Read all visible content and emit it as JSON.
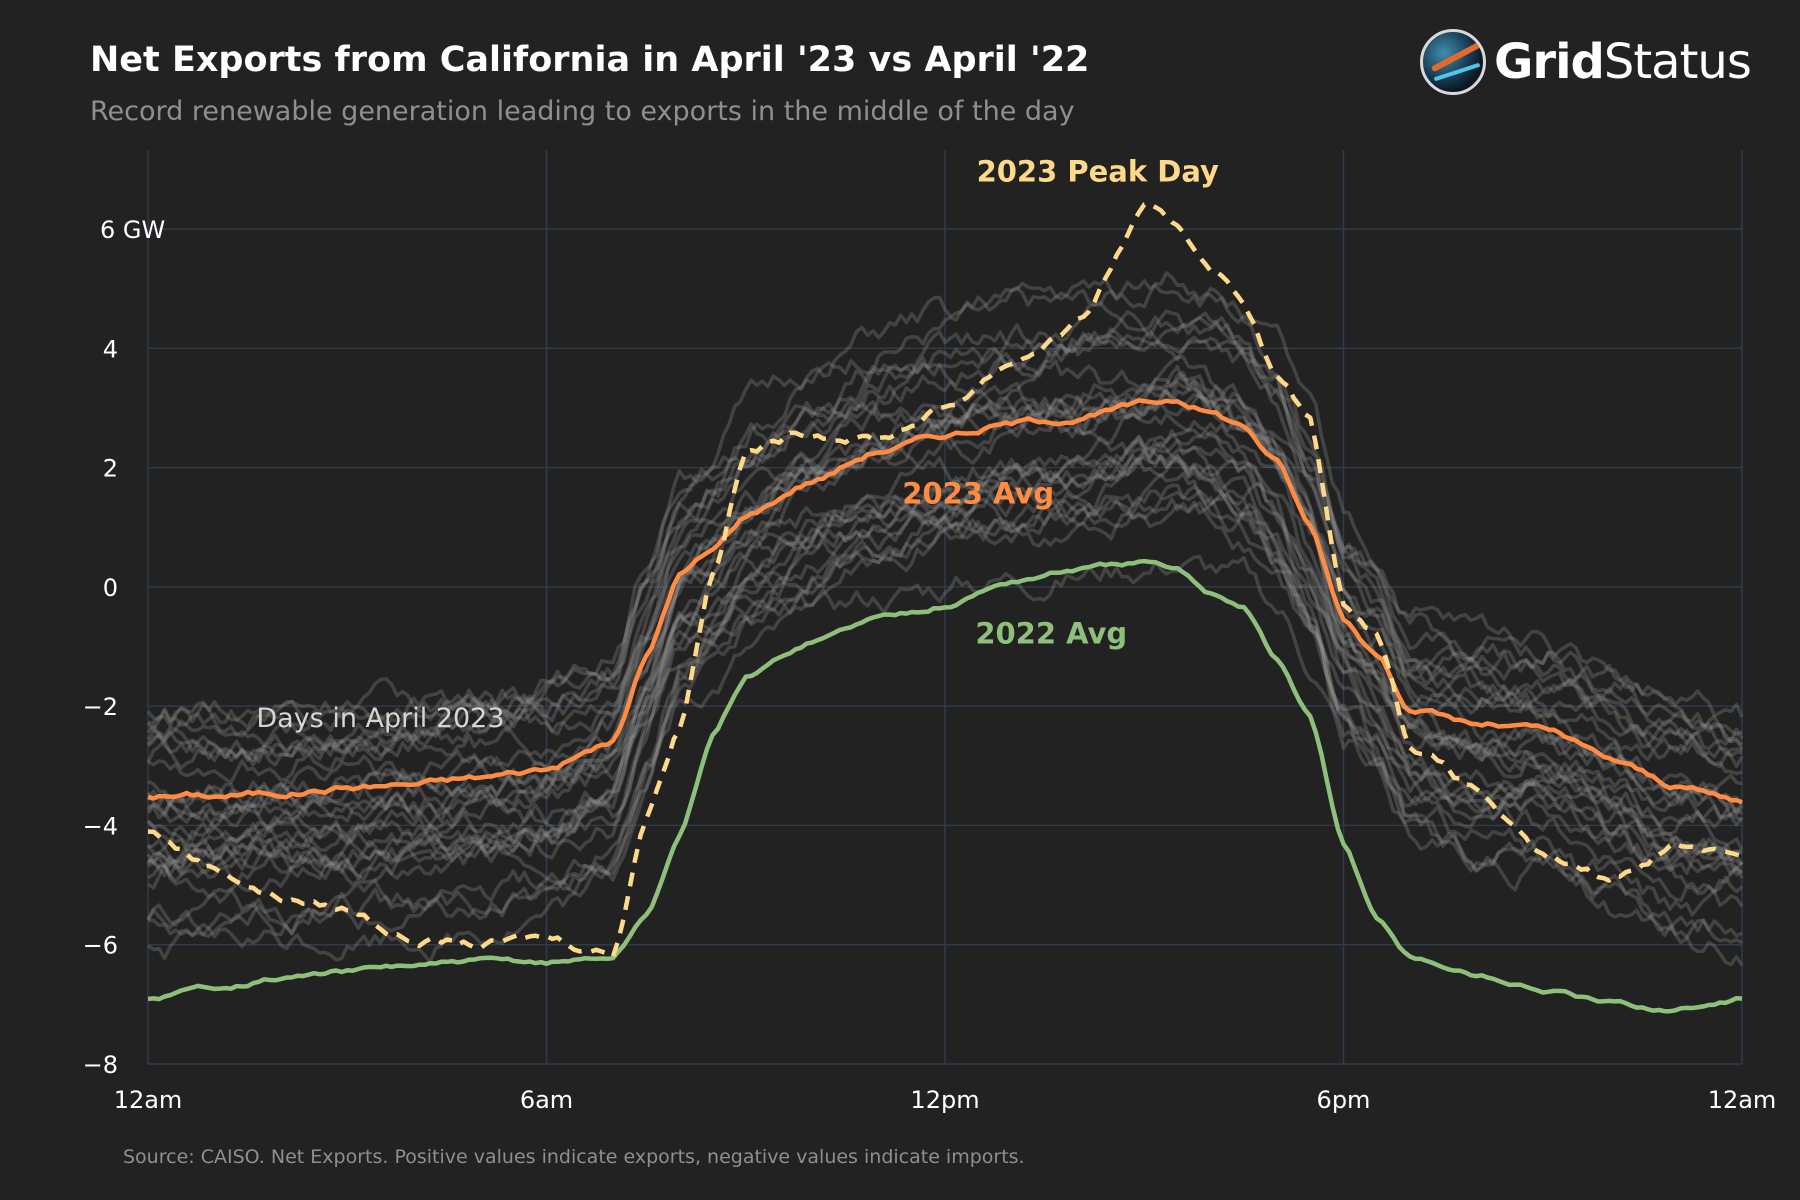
{
  "header": {
    "title": "Net Exports from California in April '23 vs April '22",
    "subtitle": "Record renewable generation leading to exports in the middle of the day"
  },
  "logo": {
    "bold": "Grid",
    "light": "Status"
  },
  "footer": {
    "source": "Source: CAISO. Net Exports. Positive values indicate exports, negative values indicate imports."
  },
  "colors": {
    "background": "#222222",
    "grid": "#2f3a4a",
    "avg_2023": "#ff8c42",
    "avg_2022": "#8ec07c",
    "peak_day": "#ffd98a",
    "days": "#9a9a9a"
  },
  "chart_data": {
    "type": "line",
    "title": "Net Exports from California in April '23 vs April '22",
    "xlabel": "",
    "ylabel": "GW",
    "x_hours": [
      0,
      1,
      2,
      3,
      4,
      5,
      6,
      7,
      7.5,
      8,
      8.5,
      9,
      10,
      11,
      12,
      13,
      14,
      15,
      15.5,
      16,
      16.5,
      17,
      17.5,
      18,
      18.5,
      19,
      20,
      21,
      22,
      23,
      24
    ],
    "xlim": [
      0,
      24
    ],
    "ylim": [
      -8,
      7
    ],
    "x_ticks": [
      {
        "value": 0,
        "label": "12am"
      },
      {
        "value": 6,
        "label": "6am"
      },
      {
        "value": 12,
        "label": "12pm"
      },
      {
        "value": 18,
        "label": "6pm"
      },
      {
        "value": 24,
        "label": "12am"
      }
    ],
    "y_ticks": [
      {
        "value": -8,
        "label": "−8"
      },
      {
        "value": -6,
        "label": "−6"
      },
      {
        "value": -4,
        "label": "−4"
      },
      {
        "value": -2,
        "label": "−2"
      },
      {
        "value": 0,
        "label": "0"
      },
      {
        "value": 2,
        "label": "2"
      },
      {
        "value": 4,
        "label": "4"
      },
      {
        "value": 6,
        "label": "6 GW"
      }
    ],
    "series": [
      {
        "name": "2023 Avg",
        "style": "solid",
        "values": [
          -3.5,
          -3.5,
          -3.45,
          -3.35,
          -3.3,
          -3.2,
          -3.05,
          -2.6,
          -1.2,
          0.2,
          0.6,
          1.2,
          1.8,
          2.3,
          2.55,
          2.75,
          2.85,
          3.05,
          3.15,
          2.95,
          2.7,
          2.1,
          1.0,
          -0.5,
          -1.1,
          -2.0,
          -2.3,
          -2.4,
          -2.9,
          -3.35,
          -3.6
        ]
      },
      {
        "name": "2022 Avg",
        "style": "solid",
        "values": [
          -6.9,
          -6.7,
          -6.55,
          -6.45,
          -6.35,
          -6.3,
          -6.3,
          -6.2,
          -5.5,
          -4.2,
          -2.5,
          -1.5,
          -0.9,
          -0.5,
          -0.3,
          0.1,
          0.3,
          0.4,
          0.25,
          -0.1,
          -0.3,
          -1.2,
          -2.2,
          -4.3,
          -5.6,
          -6.2,
          -6.5,
          -6.75,
          -7.0,
          -7.1,
          -6.9
        ]
      },
      {
        "name": "2023 Peak Day",
        "style": "dashed",
        "values": [
          -4.1,
          -4.7,
          -5.2,
          -5.4,
          -5.9,
          -6.0,
          -5.9,
          -6.1,
          -3.8,
          -2.3,
          0.3,
          2.3,
          2.6,
          2.5,
          3.0,
          3.8,
          4.4,
          6.3,
          6.0,
          5.4,
          4.8,
          3.5,
          2.8,
          -0.3,
          -0.7,
          -2.6,
          -3.4,
          -4.6,
          -4.9,
          -4.3,
          -4.4
        ]
      }
    ],
    "annotations": [
      {
        "text": "2023 Peak Day",
        "x": 14.3,
        "y": 6.8,
        "series": "2023 Peak Day"
      },
      {
        "text": "2023 Avg",
        "x": 12.5,
        "y": 1.4,
        "series": "2023 Avg"
      },
      {
        "text": "2022 Avg",
        "x": 13.6,
        "y": -0.95,
        "series": "2022 Avg"
      },
      {
        "text": "Days in April 2023",
        "x": 3.5,
        "y": -2.35,
        "series": "Days in April 2023"
      }
    ],
    "days_in_april_2023": {
      "name": "Days in April 2023",
      "offsets": [
        1.6,
        1.1,
        0.6,
        0.2,
        -0.3,
        -0.7,
        -1.1,
        -1.5,
        -1.9,
        -2.3,
        1.9,
        1.3,
        0.8,
        0.4,
        -0.1,
        -0.5,
        -0.9,
        -1.3,
        -1.7,
        -2.1,
        1.4,
        0.9,
        0.3,
        -0.2,
        -0.6,
        -1.0,
        -1.4,
        -1.8,
        -2.2,
        0.5
      ],
      "amplitudes": [
        1.15,
        1.0,
        0.95,
        1.1,
        1.2,
        0.85,
        1.05,
        0.9,
        1.25,
        0.8,
        1.1,
        0.95,
        1.2,
        0.9,
        1.0,
        1.15,
        0.85,
        1.05,
        0.95,
        1.1,
        1.0,
        1.2,
        0.9,
        1.1,
        0.95,
        1.05,
        0.85,
        1.15,
        1.0,
        0.9
      ]
    }
  }
}
